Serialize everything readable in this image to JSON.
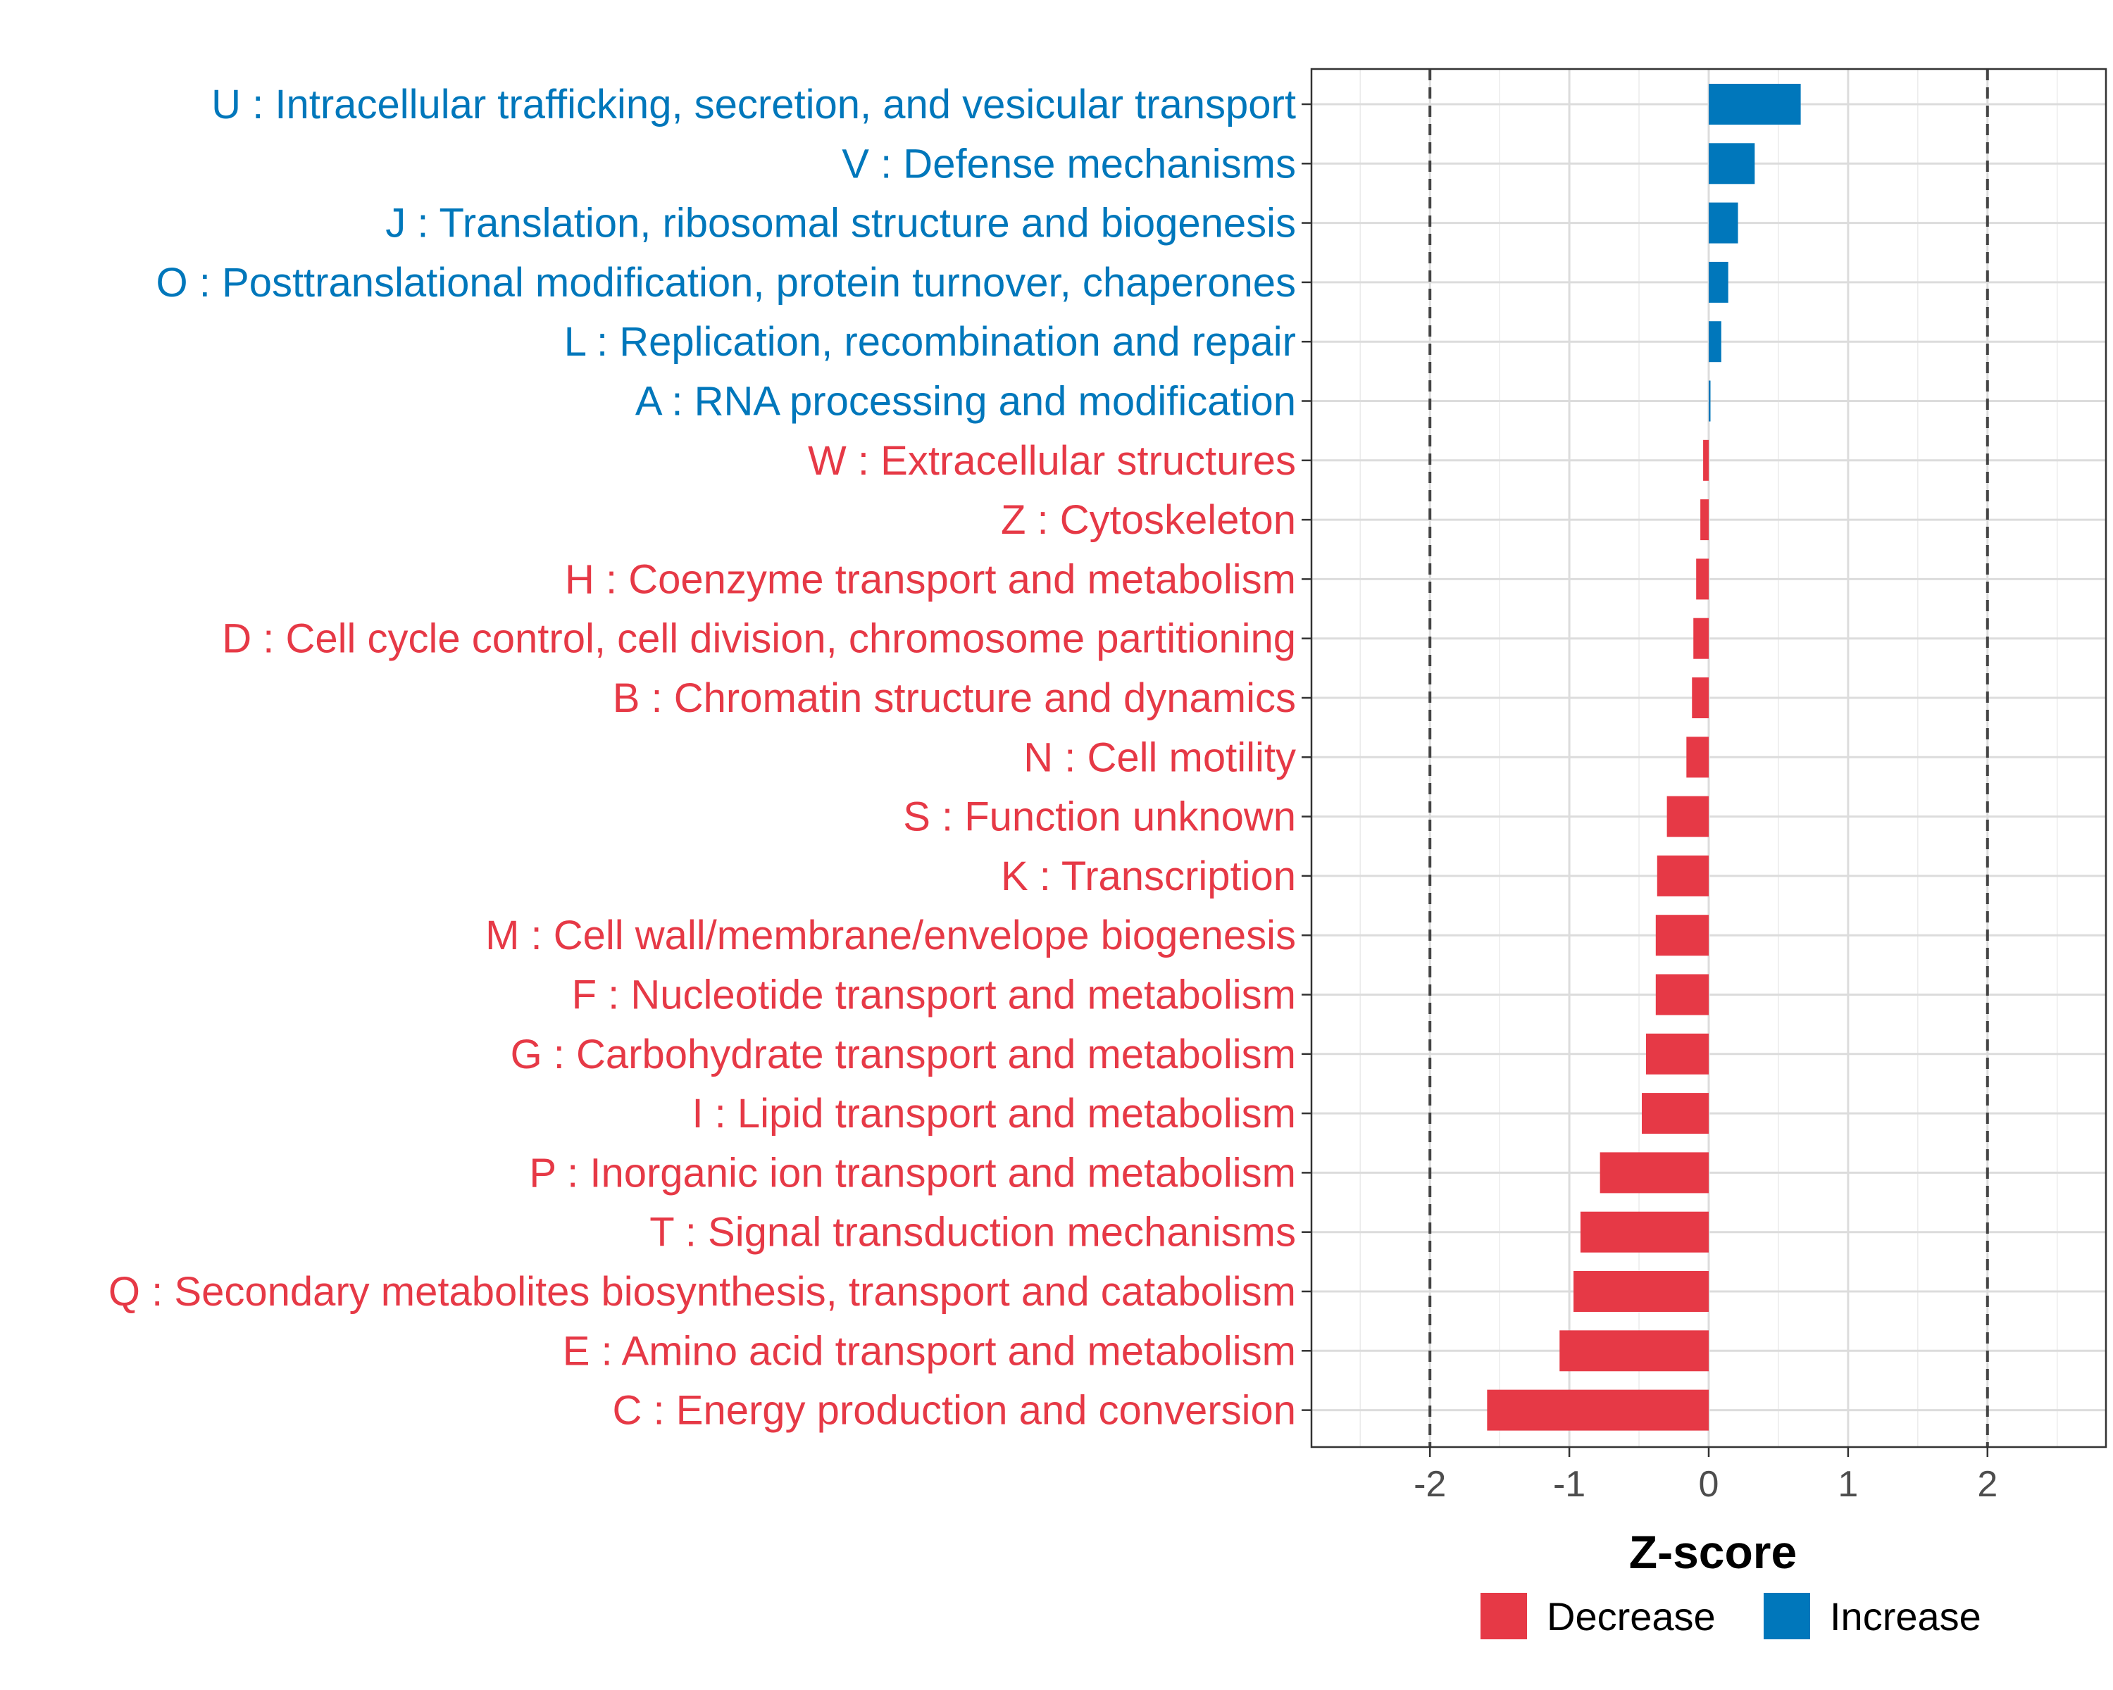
{
  "chart_data": {
    "type": "bar",
    "orientation": "horizontal",
    "title": "",
    "xlabel": "Z-score",
    "ylabel": "",
    "xlim": [
      -2.85,
      2.85
    ],
    "xticks": [
      -2,
      -1,
      0,
      1,
      2
    ],
    "xtick_labels": [
      "-2",
      "-1",
      "0",
      "1",
      "2"
    ],
    "reference_lines": [
      -2,
      2
    ],
    "grid": true,
    "colors": {
      "Decrease": "#E63946",
      "Increase": "#0077BB"
    },
    "categories": [
      "U : Intracellular trafficking, secretion, and vesicular transport",
      "V : Defense mechanisms",
      "J : Translation, ribosomal structure and biogenesis",
      "O : Posttranslational modification, protein turnover, chaperones",
      "L : Replication, recombination and repair",
      "A : RNA processing and modification",
      "W : Extracellular structures",
      "Z : Cytoskeleton",
      "H : Coenzyme transport and metabolism",
      "D : Cell cycle control, cell division, chromosome partitioning",
      "B : Chromatin structure and dynamics",
      "N : Cell motility",
      "S : Function unknown",
      "K : Transcription",
      "M : Cell wall/membrane/envelope biogenesis",
      "F : Nucleotide transport and metabolism",
      "G : Carbohydrate transport and metabolism",
      "I : Lipid transport and metabolism",
      "P : Inorganic ion transport and metabolism",
      "T : Signal transduction mechanisms",
      "Q : Secondary metabolites biosynthesis, transport and catabolism",
      "E : Amino acid transport and metabolism",
      "C : Energy production and conversion"
    ],
    "values": [
      0.66,
      0.33,
      0.21,
      0.14,
      0.09,
      0.01,
      -0.04,
      -0.06,
      -0.09,
      -0.11,
      -0.12,
      -0.16,
      -0.3,
      -0.37,
      -0.38,
      -0.38,
      -0.45,
      -0.48,
      -0.78,
      -0.92,
      -0.97,
      -1.07,
      -1.59
    ],
    "groups": [
      "Increase",
      "Increase",
      "Increase",
      "Increase",
      "Increase",
      "Increase",
      "Decrease",
      "Decrease",
      "Decrease",
      "Decrease",
      "Decrease",
      "Decrease",
      "Decrease",
      "Decrease",
      "Decrease",
      "Decrease",
      "Decrease",
      "Decrease",
      "Decrease",
      "Decrease",
      "Decrease",
      "Decrease",
      "Decrease"
    ],
    "legend": {
      "placement": "bottom",
      "items": [
        {
          "label": "Decrease",
          "color": "#E63946"
        },
        {
          "label": "Increase",
          "color": "#0077BB"
        }
      ]
    }
  }
}
